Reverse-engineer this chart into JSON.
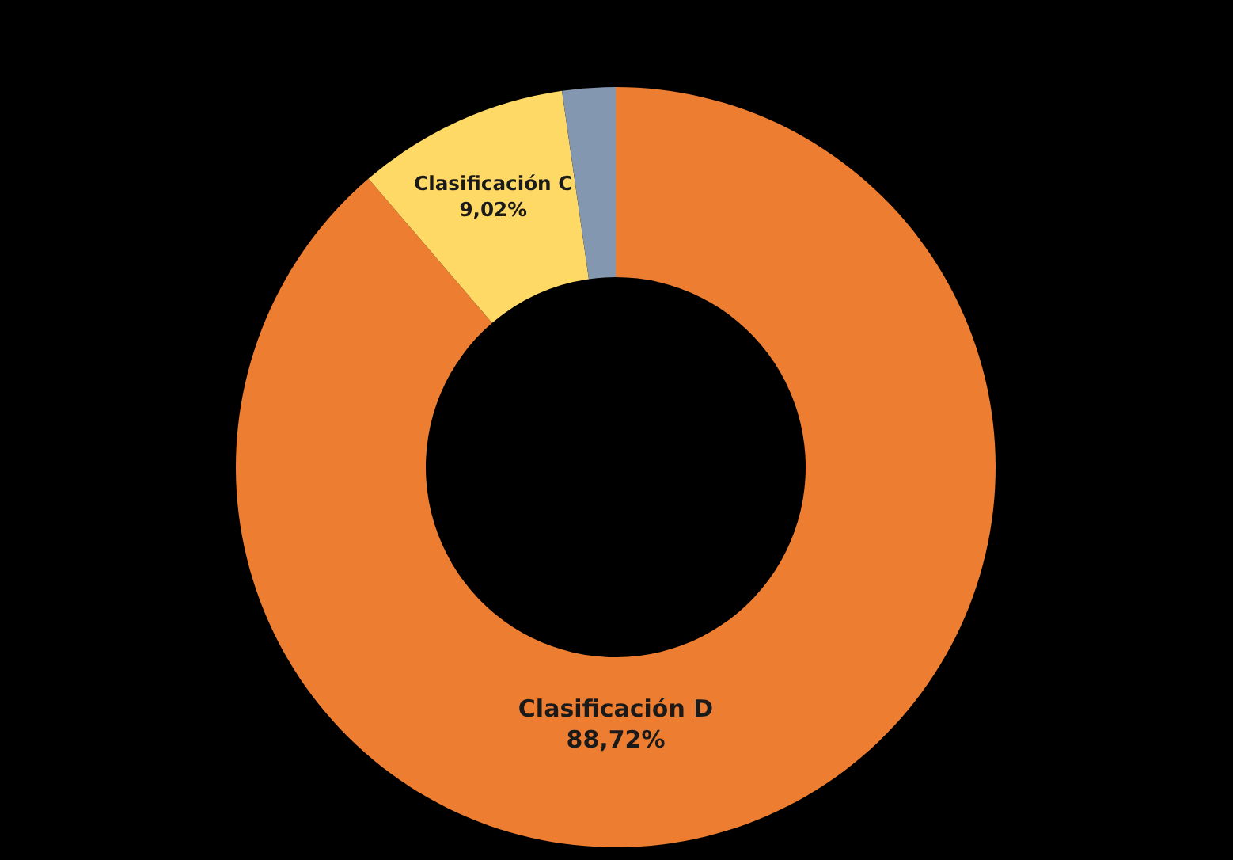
{
  "chart_data": {
    "type": "donut",
    "categories": [
      "Clasificación D",
      "Clasificación C",
      null
    ],
    "values": [
      88.72,
      9.02,
      2.26
    ],
    "colors": [
      "#ed7d31",
      "#ffd966",
      "#8497b0"
    ],
    "value_labels": [
      "88,72%",
      "9,02%",
      null
    ],
    "legend": false
  }
}
